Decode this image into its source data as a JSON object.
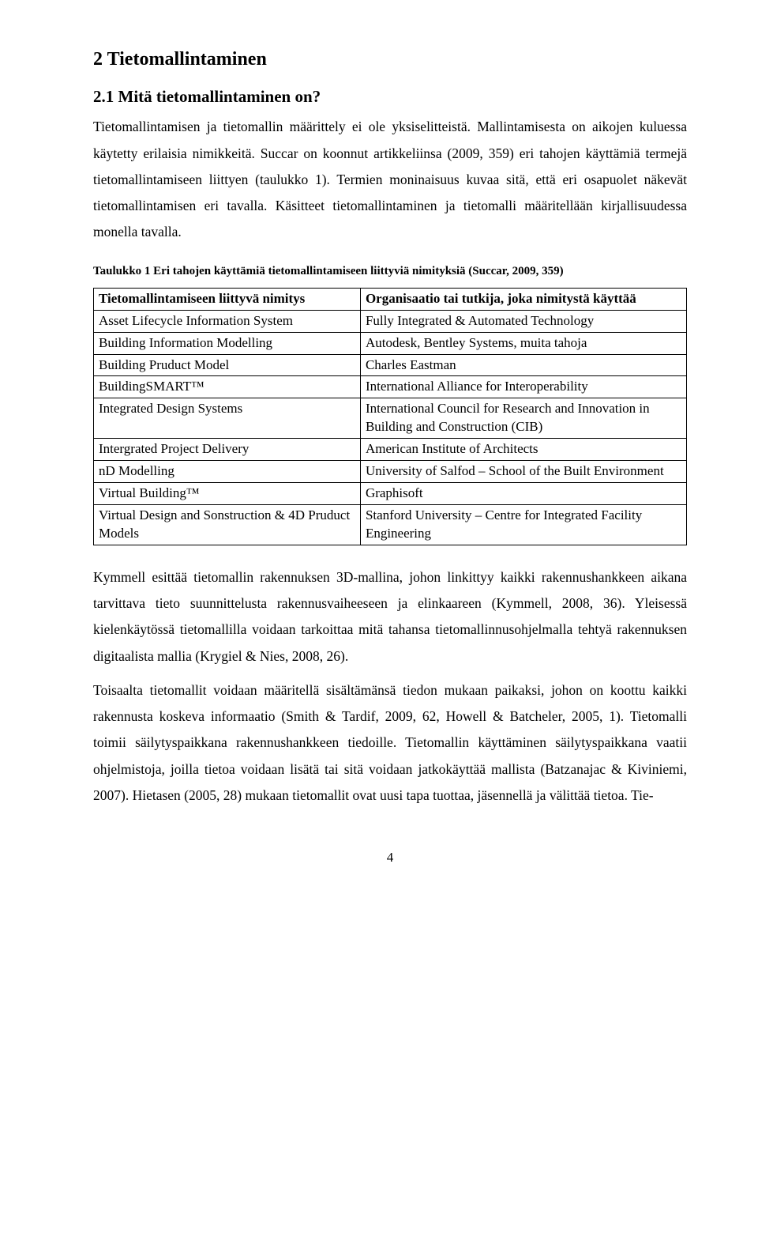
{
  "headings": {
    "h1": "2  Tietomallintaminen",
    "h2": "2.1   Mitä tietomallintaminen on?"
  },
  "para1": "Tietomallintamisen ja tietomallin määrittely ei ole yksiselitteistä. Mallintamisesta on aikojen kuluessa käytetty erilaisia nimikkeitä. Succar on koonnut artikkeliinsa (2009, 359) eri tahojen käyttämiä termejä tietomallintamiseen liittyen (taulukko 1). Termien moninaisuus kuvaa sitä, että eri osapuolet näkevät tietomallintamisen eri tavalla. Käsitteet tietomallintaminen ja tietomalli määritellään kirjallisuudessa monella tavalla.",
  "table": {
    "caption": "Taulukko 1 Eri tahojen käyttämiä tietomallintamiseen liittyviä nimityksiä (Succar, 2009, 359)",
    "headers": [
      "Tietomallintamiseen liittyvä nimitys",
      "Organisaatio tai tutkija, joka nimitystä käyttää"
    ],
    "col_widths": [
      "45%",
      "55%"
    ],
    "rows": [
      [
        "Asset Lifecycle Information System",
        "Fully Integrated & Automated Technology"
      ],
      [
        "Building Information Modelling",
        "Autodesk, Bentley Systems, muita tahoja"
      ],
      [
        "Building Pruduct Model",
        "Charles Eastman"
      ],
      [
        "BuildingSMART™",
        "International Alliance for Interoperability"
      ],
      [
        "Integrated Design Systems",
        "International Council for Research and Innovation in Building and Construction (CIB)"
      ],
      [
        "Intergrated Project Delivery",
        "American Institute of Architects"
      ],
      [
        "nD Modelling",
        "University of Salfod – School of the Built Environment"
      ],
      [
        "Virtual Building™",
        "Graphisoft"
      ],
      [
        "Virtual Design and Sonstruction & 4D Pruduct Models",
        "Stanford University – Centre for Integrated Facility Engineering"
      ]
    ]
  },
  "para2": "Kymmell esittää tietomallin rakennuksen 3D-mallina, johon linkittyy kaikki rakennushankkeen aikana tarvittava tieto suunnittelusta rakennusvaiheeseen ja elinkaareen (Kymmell, 2008, 36). Yleisessä kielenkäytössä tietomallilla voidaan tarkoittaa mitä tahansa tietomallinnusohjelmalla tehtyä rakennuksen digitaalista mallia (Krygiel & Nies, 2008, 26).",
  "para3": "Toisaalta tietomallit voidaan määritellä sisältämänsä tiedon mukaan paikaksi, johon on koottu kaikki rakennusta koskeva informaatio (Smith & Tardif, 2009, 62, Howell & Batcheler, 2005, 1). Tietomalli toimii säilytyspaikkana rakennushankkeen tiedoille. Tietomallin käyttäminen säilytyspaikkana vaatii ohjelmistoja, joilla tietoa voidaan lisätä tai sitä voidaan jatkokäyttää mallista (Batzanajac & Kiviniemi, 2007). Hietasen (2005, 28) mukaan tietomallit ovat uusi tapa tuottaa, jäsennellä ja välittää tietoa. Tie-",
  "page_number": "4"
}
